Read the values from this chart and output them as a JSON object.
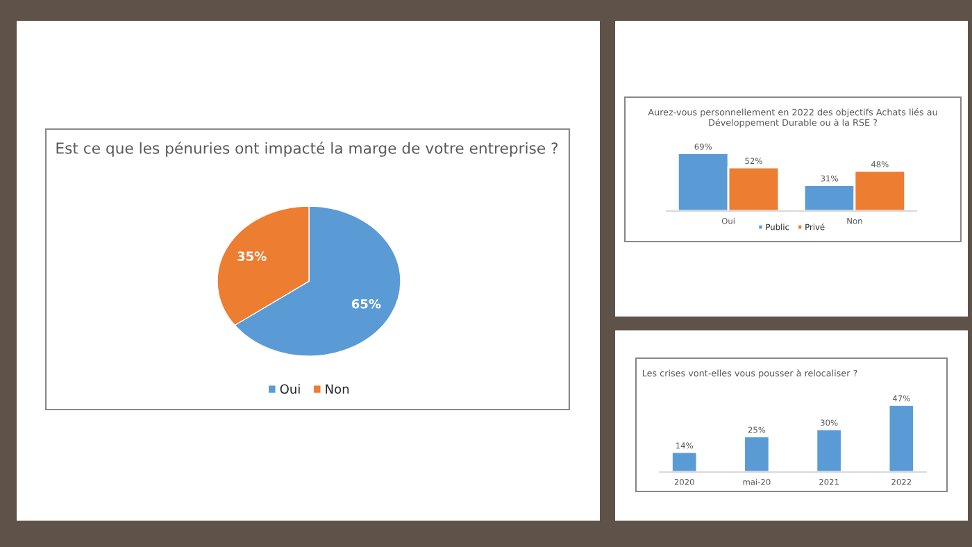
{
  "chart_data": [
    {
      "type": "pie",
      "title": "Est ce que les pénuries ont impacté la marge de votre entreprise ?",
      "categories": [
        "Oui",
        "Non"
      ],
      "values": [
        65,
        35
      ],
      "colors": [
        "#5b9bd5",
        "#ed7d31"
      ],
      "value_labels": [
        "65%",
        "35%"
      ],
      "legend": "bottom"
    },
    {
      "type": "bar",
      "title": "Aurez-vous personnellement en 2022 des objectifs Achats liés au Développement Durable ou à la RSE ?",
      "categories": [
        "Oui",
        "Non"
      ],
      "series": [
        {
          "name": "Public",
          "color": "#5b9bd5",
          "values": [
            69,
            31
          ],
          "value_labels": [
            "69%",
            "31%"
          ]
        },
        {
          "name": "Privé",
          "color": "#ed7d31",
          "values": [
            52,
            48
          ],
          "value_labels": [
            "52%",
            "48%"
          ]
        }
      ],
      "legend": "bottom"
    },
    {
      "type": "bar",
      "title": "Les crises vont-elles vous pousser à relocaliser ?",
      "categories": [
        "2020",
        "mai-20",
        "2021",
        "2022"
      ],
      "values": [
        14,
        25,
        30,
        47
      ],
      "value_labels": [
        "14%",
        "25%",
        "30%",
        "47%"
      ],
      "color": "#5b9bd5"
    }
  ]
}
